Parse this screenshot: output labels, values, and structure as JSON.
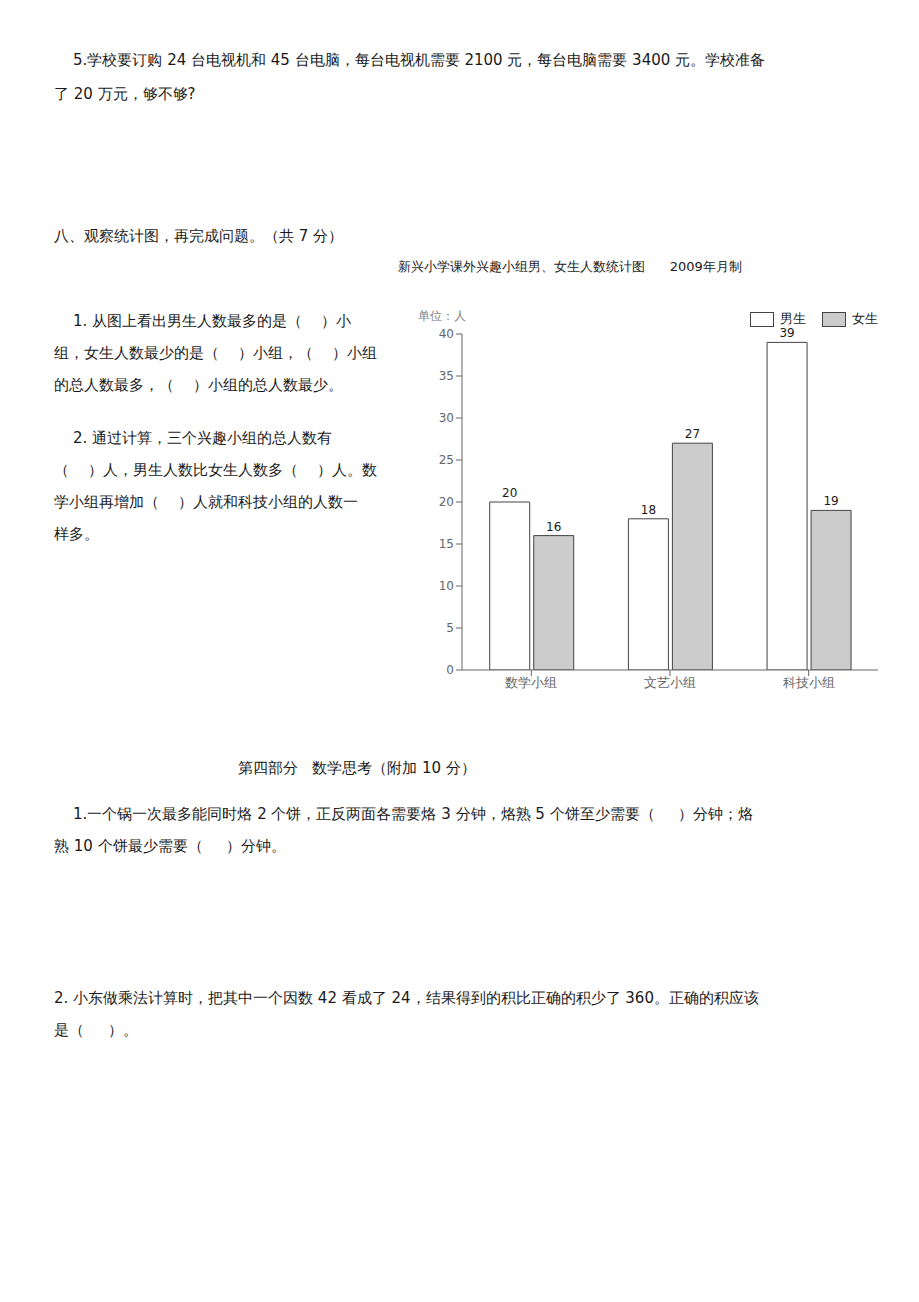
{
  "chart_data": {
    "type": "bar",
    "title": "新兴小学课外兴趣小组男、女生人数统计图      2009年月制",
    "ylabel": "单位：人",
    "categories": [
      "数学小组",
      "文艺小组",
      "科技小组"
    ],
    "series": [
      {
        "name": "男生",
        "color": "#ffffff",
        "values": [
          20,
          18,
          39
        ]
      },
      {
        "name": "女生",
        "color": "#cccccc",
        "values": [
          16,
          27,
          19
        ]
      }
    ],
    "ylim": [
      0,
      40
    ],
    "yticks": [
      0,
      5,
      10,
      15,
      20,
      25,
      30,
      35,
      40
    ],
    "grid": false,
    "legend": "upper right",
    "data_labels": true,
    "annotations": [
      "    5.学校要订购 24 台电视机和 45 台电脑，每台电视机需要 2100 元，每台电脑需要 3400 元。学校准备",
      "了 20 万元，够不够?",
      "八、观察统计图，再完成问题。（共 7 分）",
      "    1. 从图上看出男生人数最多的是（    ）小",
      "组，女生人数最少的是（    ）小组，（    ）小组",
      "的总人数最多，（    ）小组的总人数最少。",
      "    2. 通过计算，三个兴趣小组的总人数有",
      "（    ）人，男生人数比女生人数多（    ）人。数",
      "学小组再增加（    ）人就和科技小组的人数一",
      "样多。",
      "第四部分   数学思考（附加 10 分）",
      "    1.一个锅一次最多能同时烙 2 个饼，正反两面各需要烙 3 分钟，烙熟 5 个饼至少需要（     ）分钟；烙",
      "熟 10 个饼最少需要（     ）分钟。",
      "2. 小东做乘法计算时，把其中一个因数 42 看成了 24，结果得到的积比正确的积少了 360。正确的积应该",
      "是（     ）。"
    ]
  }
}
